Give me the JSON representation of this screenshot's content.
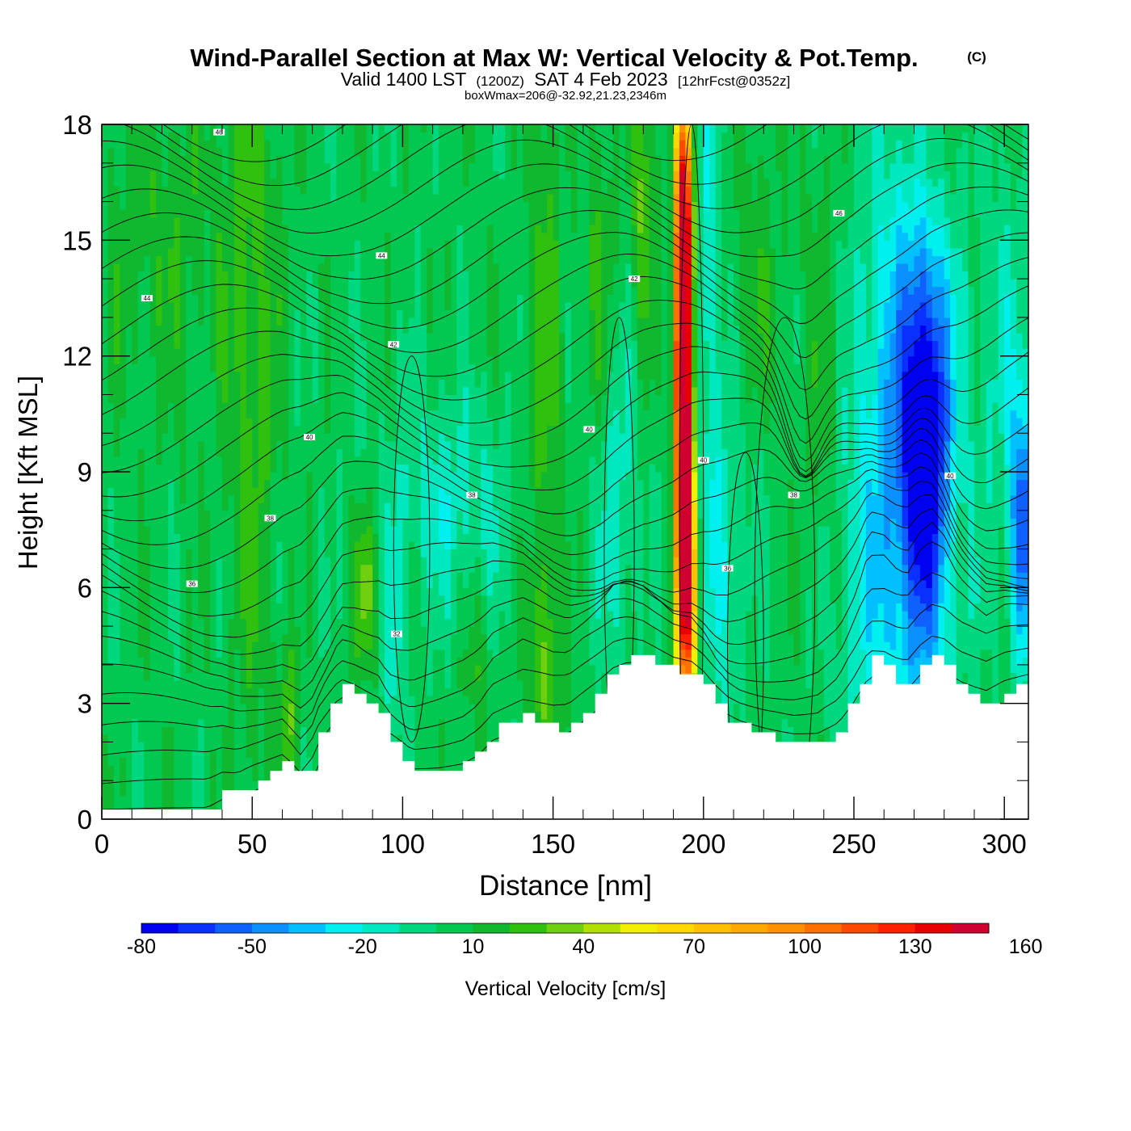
{
  "chart_data": {
    "type": "heatmap",
    "title": "Wind-Parallel Section at Max W: Vertical Velocity & Pot.Temp.",
    "title_mark": "(C)",
    "subtitle": {
      "valid": "Valid 1400 LST",
      "zulu": "(1200Z)",
      "date": "SAT 4 Feb 2023",
      "forecast": "[12hrFcst@0352z]"
    },
    "box_note": "boxWmax=206@-32.92,21.23,2346m",
    "xlabel": "Distance [nm]",
    "ylabel": "Height [Kft MSL]",
    "xlim": [
      0,
      308
    ],
    "ylim": [
      0,
      18
    ],
    "x_ticks": [
      0,
      50,
      100,
      150,
      200,
      250,
      300
    ],
    "y_ticks": [
      0,
      3,
      6,
      9,
      12,
      15,
      18
    ],
    "grid": false,
    "colorbar": {
      "label": "Vertical Velocity [cm/s]",
      "min": -80,
      "max": 180,
      "step": 10,
      "tick_labels": [
        "-80",
        "-50",
        "-20",
        "10",
        "40",
        "70",
        "100",
        "130",
        "160"
      ],
      "colors": [
        "#0000f0",
        "#0a30ff",
        "#1060ff",
        "#0a90ff",
        "#00c0ff",
        "#00f0f0",
        "#00e8c0",
        "#00d880",
        "#00c850",
        "#10b830",
        "#30c010",
        "#70d010",
        "#b0e000",
        "#f0f000",
        "#ffd800",
        "#ffc000",
        "#ffa800",
        "#ff9000",
        "#ff7000",
        "#ff4800",
        "#ff2000",
        "#e80000",
        "#d00030"
      ]
    },
    "terrain_kft": [
      [
        0,
        0.3
      ],
      [
        35,
        0.3
      ],
      [
        40,
        0.65
      ],
      [
        45,
        0.65
      ],
      [
        50,
        1.0
      ],
      [
        55,
        1.3
      ],
      [
        60,
        1.6
      ],
      [
        63,
        1.3
      ],
      [
        66,
        0.9
      ],
      [
        70,
        1.6
      ],
      [
        72,
        2.2
      ],
      [
        75,
        2.8
      ],
      [
        78,
        3.3
      ],
      [
        80,
        3.5
      ],
      [
        84,
        3.3
      ],
      [
        88,
        3.0
      ],
      [
        92,
        2.7
      ],
      [
        96,
        2.0
      ],
      [
        100,
        1.6
      ],
      [
        103,
        1.3
      ],
      [
        112,
        1.3
      ],
      [
        120,
        1.4
      ],
      [
        125,
        1.7
      ],
      [
        130,
        2.3
      ],
      [
        140,
        2.7
      ],
      [
        150,
        2.3
      ],
      [
        155,
        2.3
      ],
      [
        160,
        2.8
      ],
      [
        165,
        3.3
      ],
      [
        170,
        3.9
      ],
      [
        175,
        4.2
      ],
      [
        180,
        4.2
      ],
      [
        185,
        4.0
      ],
      [
        190,
        3.8
      ],
      [
        196,
        3.8
      ],
      [
        200,
        3.5
      ],
      [
        204,
        3.0
      ],
      [
        208,
        2.6
      ],
      [
        212,
        2.4
      ],
      [
        220,
        2.2
      ],
      [
        230,
        2.0
      ],
      [
        238,
        2.0
      ],
      [
        245,
        2.4
      ],
      [
        250,
        3.2
      ],
      [
        255,
        4.2
      ],
      [
        260,
        4.0
      ],
      [
        262,
        3.8
      ],
      [
        265,
        3.5
      ],
      [
        268,
        3.4
      ],
      [
        272,
        3.9
      ],
      [
        276,
        4.2
      ],
      [
        280,
        4.0
      ],
      [
        285,
        3.4
      ],
      [
        290,
        3.1
      ],
      [
        294,
        2.9
      ],
      [
        300,
        3.3
      ],
      [
        308,
        3.6
      ]
    ],
    "updrafts": [
      {
        "x": 193,
        "z": 11.0,
        "sx": 2.2,
        "sz": 4.5,
        "w": 200
      },
      {
        "x": 195,
        "z": 6.0,
        "sx": 2.2,
        "sz": 2.5,
        "w": 80
      },
      {
        "x": 194,
        "z": 15.5,
        "sx": 2.0,
        "sz": 2.0,
        "w": 70
      },
      {
        "x": 180,
        "z": 16.0,
        "sx": 3.0,
        "sz": 3.0,
        "w": 25
      },
      {
        "x": 50,
        "z": 12.0,
        "sx": 6.0,
        "sz": 8.0,
        "w": 18
      },
      {
        "x": 20,
        "z": 15.0,
        "sx": 18.0,
        "sz": 3.0,
        "w": 12
      },
      {
        "x": 147,
        "z": 12.0,
        "sx": 4.0,
        "sz": 6.0,
        "w": 20
      },
      {
        "x": 165,
        "z": 13.0,
        "sx": 4.0,
        "sz": 4.0,
        "w": 18
      },
      {
        "x": 215,
        "z": 12.0,
        "sx": 8.0,
        "sz": 4.0,
        "w": 16
      },
      {
        "x": 240,
        "z": 10.0,
        "sx": 5.0,
        "sz": 5.0,
        "w": 16
      },
      {
        "x": 275,
        "z": 17.0,
        "sx": 5.0,
        "sz": 2.0,
        "w": 10
      },
      {
        "x": 88,
        "z": 6.0,
        "sx": 3.0,
        "sz": 1.5,
        "w": 30
      },
      {
        "x": 125,
        "z": 4.0,
        "sx": 3.0,
        "sz": 2.0,
        "w": 15
      },
      {
        "x": 148,
        "z": 4.0,
        "sx": 4.0,
        "sz": 2.0,
        "w": 18
      },
      {
        "x": 62,
        "z": 2.5,
        "sx": 2.0,
        "sz": 1.5,
        "w": 25
      }
    ],
    "downdrafts": [
      {
        "x": 274,
        "z": 10.0,
        "sx": 5.0,
        "sz": 3.2,
        "w": -65
      },
      {
        "x": 268,
        "z": 9.5,
        "sx": 11.0,
        "sz": 5.5,
        "w": -35
      },
      {
        "x": 266,
        "z": 8.0,
        "sx": 14.0,
        "sz": 7.0,
        "w": -15
      },
      {
        "x": 306,
        "z": 7.5,
        "sx": 3.0,
        "sz": 2.5,
        "w": -60
      },
      {
        "x": 190,
        "z": 10.0,
        "sx": 2.0,
        "sz": 4.0,
        "w": -25
      },
      {
        "x": 201,
        "z": 14.0,
        "sx": 5.0,
        "sz": 4.5,
        "w": -28
      },
      {
        "x": 170,
        "z": 8.5,
        "sx": 6.0,
        "sz": 3.0,
        "w": -25
      },
      {
        "x": 207,
        "z": 6.0,
        "sx": 5.0,
        "sz": 2.5,
        "w": -22
      },
      {
        "x": 215,
        "z": 9.0,
        "sx": 8.0,
        "sz": 2.5,
        "w": -15
      },
      {
        "x": 110,
        "z": 8.5,
        "sx": 15.0,
        "sz": 2.0,
        "w": -15
      },
      {
        "x": 97,
        "z": 4.5,
        "sx": 3.0,
        "sz": 2.0,
        "w": -20
      },
      {
        "x": 125,
        "z": 7.5,
        "sx": 12.0,
        "sz": 2.0,
        "w": -10
      },
      {
        "x": 245,
        "z": 6.0,
        "sx": 8.0,
        "sz": 3.0,
        "w": -12
      },
      {
        "x": 300,
        "z": 12.0,
        "sx": 6.0,
        "sz": 4.0,
        "w": -15
      }
    ],
    "isentropes": {
      "labels": [
        {
          "x": 39,
          "z": 17.8,
          "text": "46"
        },
        {
          "x": 93,
          "z": 14.6,
          "text": "44"
        },
        {
          "x": 15,
          "z": 13.5,
          "text": "44"
        },
        {
          "x": 177,
          "z": 14.0,
          "text": "42"
        },
        {
          "x": 245,
          "z": 15.7,
          "text": "46"
        },
        {
          "x": 97,
          "z": 12.3,
          "text": "42"
        },
        {
          "x": 69,
          "z": 9.9,
          "text": "40"
        },
        {
          "x": 162,
          "z": 10.1,
          "text": "40"
        },
        {
          "x": 200,
          "z": 9.3,
          "text": "40"
        },
        {
          "x": 123,
          "z": 8.4,
          "text": "38"
        },
        {
          "x": 230,
          "z": 8.4,
          "text": "38"
        },
        {
          "x": 282,
          "z": 8.9,
          "text": "40"
        },
        {
          "x": 56,
          "z": 7.8,
          "text": "38"
        },
        {
          "x": 30,
          "z": 6.1,
          "text": "36"
        },
        {
          "x": 208,
          "z": 6.5,
          "text": "36"
        },
        {
          "x": 98,
          "z": 4.8,
          "text": "32"
        }
      ]
    }
  }
}
